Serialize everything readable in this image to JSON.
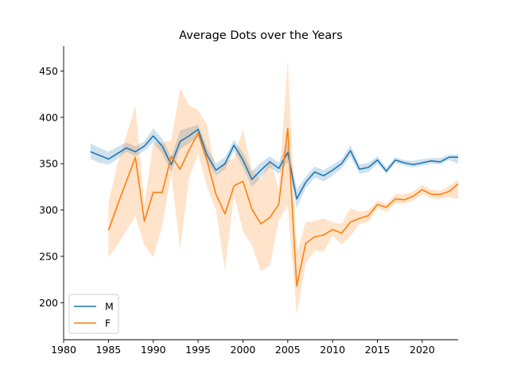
{
  "chart_data": {
    "type": "line",
    "title": "Average Dots over the Years",
    "xlabel": "",
    "ylabel": "",
    "xlim": [
      1980,
      2024
    ],
    "ylim": [
      160,
      477
    ],
    "xticks": [
      1980,
      1985,
      1990,
      1995,
      2000,
      2005,
      2010,
      2015,
      2020
    ],
    "yticks": [
      200,
      250,
      300,
      350,
      400,
      450
    ],
    "grid": false,
    "legend_position": "lower-left",
    "colors": {
      "M": "#1f77b4",
      "F": "#ff7f0e"
    },
    "series": [
      {
        "name": "M",
        "x": [
          1983,
          1984,
          1985,
          1986,
          1987,
          1988,
          1989,
          1990,
          1991,
          1992,
          1993,
          1994,
          1995,
          1996,
          1997,
          1998,
          1999,
          2000,
          2001,
          2002,
          2003,
          2004,
          2005,
          2006,
          2007,
          2008,
          2009,
          2010,
          2011,
          2012,
          2013,
          2014,
          2015,
          2016,
          2017,
          2018,
          2019,
          2020,
          2021,
          2022,
          2023,
          2024
        ],
        "values": [
          363,
          359,
          355,
          361,
          367,
          363,
          369,
          380,
          369,
          349,
          374,
          380,
          387,
          359,
          343,
          350,
          370,
          354,
          333,
          343,
          352,
          345,
          362,
          312,
          330,
          341,
          337,
          343,
          350,
          364,
          344,
          346,
          354,
          342,
          354,
          351,
          349,
          351,
          353,
          352,
          357,
          357
        ],
        "ci_low": [
          355,
          351,
          349,
          355,
          363,
          358,
          364,
          373,
          361,
          341,
          366,
          372,
          379,
          351,
          337,
          344,
          364,
          346,
          325,
          335,
          346,
          339,
          352,
          302,
          324,
          335,
          331,
          337,
          345,
          358,
          339,
          341,
          350,
          339,
          351,
          348,
          346,
          348,
          350,
          349,
          354,
          350
        ],
        "ci_high": [
          372,
          367,
          363,
          368,
          373,
          369,
          374,
          388,
          377,
          357,
          386,
          389,
          392,
          367,
          350,
          357,
          376,
          362,
          342,
          351,
          358,
          351,
          372,
          322,
          336,
          347,
          343,
          349,
          355,
          370,
          349,
          351,
          358,
          346,
          357,
          354,
          353,
          355,
          356,
          356,
          360,
          360
        ]
      },
      {
        "name": "F",
        "x": [
          1985,
          1986,
          1987,
          1988,
          1989,
          1990,
          1991,
          1992,
          1993,
          1994,
          1995,
          1996,
          1997,
          1998,
          1999,
          2000,
          2001,
          2002,
          2003,
          2004,
          2005,
          2006,
          2007,
          2008,
          2009,
          2010,
          2011,
          2012,
          2013,
          2014,
          2015,
          2016,
          2017,
          2018,
          2019,
          2020,
          2021,
          2022,
          2023,
          2024
        ],
        "values": [
          278,
          305,
          331,
          357,
          288,
          319,
          319,
          358,
          344,
          365,
          383,
          353,
          317,
          296,
          326,
          331,
          301,
          285,
          292,
          306,
          388,
          218,
          264,
          271,
          273,
          279,
          275,
          287,
          291,
          294,
          306,
          303,
          312,
          311,
          315,
          322,
          317,
          317,
          320,
          328
        ],
        "ci_low": [
          249,
          262,
          278,
          294,
          262,
          249,
          283,
          339,
          258,
          335,
          361,
          325,
          300,
          235,
          317,
          277,
          262,
          234,
          240,
          289,
          305,
          187,
          242,
          256,
          255,
          272,
          263,
          272,
          285,
          287,
          302,
          298,
          307,
          307,
          310,
          317,
          313,
          312,
          314,
          312
        ],
        "ci_high": [
          308,
          349,
          380,
          413,
          306,
          372,
          373,
          375,
          431,
          413,
          408,
          392,
          339,
          352,
          356,
          387,
          343,
          332,
          355,
          322,
          462,
          253,
          287,
          288,
          291,
          287,
          285,
          302,
          298,
          300,
          310,
          307,
          317,
          317,
          320,
          327,
          322,
          321,
          326,
          333
        ]
      }
    ]
  }
}
